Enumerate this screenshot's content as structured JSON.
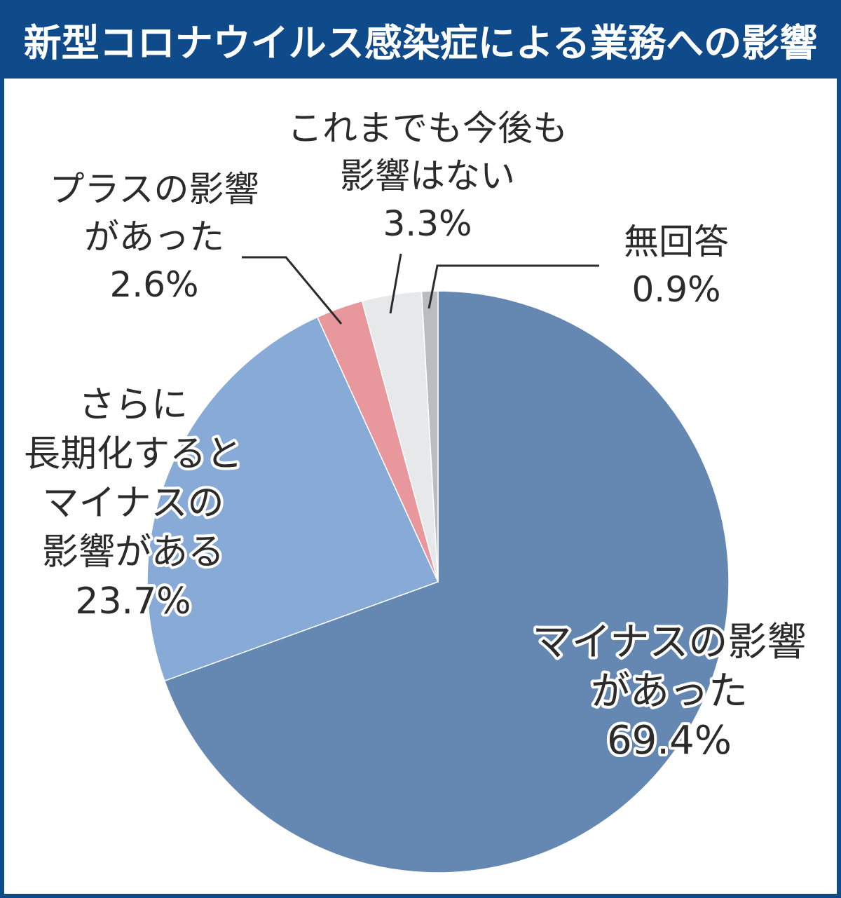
{
  "chart_data": {
    "type": "pie",
    "title": "新型コロナウイルス感染症による業務への影響",
    "slices": [
      {
        "label_lines": [
          "マイナスの影響",
          "があった"
        ],
        "value": 69.4,
        "value_label": "69.4%",
        "color": "#6588b3"
      },
      {
        "label_lines": [
          "さらに",
          "長期化すると",
          "マイナスの",
          "影響がある"
        ],
        "value": 23.7,
        "value_label": "23.7%",
        "color": "#87aad6"
      },
      {
        "label_lines": [
          "プラスの影響",
          "があった"
        ],
        "value": 2.6,
        "value_label": "2.6%",
        "color": "#e8989c"
      },
      {
        "label_lines": [
          "これまでも今後も",
          "影響はない"
        ],
        "value": 3.3,
        "value_label": "3.3%",
        "color": "#e6e8e9"
      },
      {
        "label_lines": [
          "無回答"
        ],
        "value": 0.9,
        "value_label": "0.9%",
        "color": "#b9bdbd"
      }
    ]
  },
  "colors": {
    "title_bar": "#0f4a8a",
    "label_text": "#2b2b2b"
  }
}
